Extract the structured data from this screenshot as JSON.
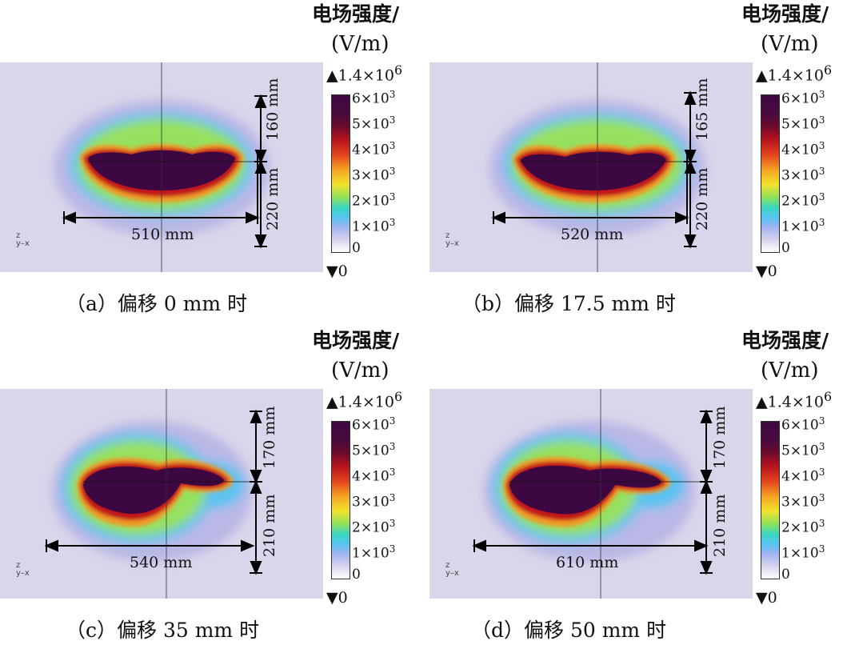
{
  "colorbar": {
    "title": "电场强度/",
    "unit": "(V/m)",
    "max_label": "▲1.4×10",
    "max_exp": "6",
    "min_label": "▼0",
    "ticks": [
      {
        "base": "6×10",
        "exp": "3"
      },
      {
        "base": "5×10",
        "exp": "3"
      },
      {
        "base": "4×10",
        "exp": "3"
      },
      {
        "base": "3×10",
        "exp": "3"
      },
      {
        "base": "2×10",
        "exp": "3"
      },
      {
        "base": "1×10",
        "exp": "3"
      },
      {
        "base": "0",
        "exp": ""
      }
    ]
  },
  "axis_triad": {
    "z": "z",
    "y": "y",
    "x": "x"
  },
  "panels": [
    {
      "caption": "（a）偏移 0 mm 时",
      "width_label": "510 mm",
      "upper_label": "160 mm",
      "lower_label": "220 mm"
    },
    {
      "caption": "（b）偏移 17.5 mm 时",
      "width_label": "520 mm",
      "upper_label": "165 mm",
      "lower_label": "220 mm"
    },
    {
      "caption": "（c）偏移 35 mm 时",
      "width_label": "540 mm",
      "upper_label": "170 mm",
      "lower_label": "210 mm"
    },
    {
      "caption": "（d）偏移 50 mm 时",
      "width_label": "610 mm",
      "upper_label": "170 mm",
      "lower_label": "210 mm"
    }
  ]
}
